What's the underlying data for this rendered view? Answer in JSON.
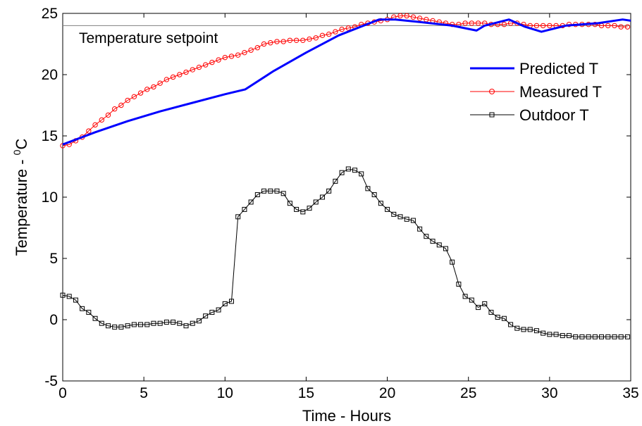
{
  "chart_data": {
    "type": "line",
    "xlabel": "Time - Hours",
    "ylabel_main": "Temperature - ",
    "ylabel_sup": "0",
    "ylabel_unit": "C",
    "xlim": [
      0,
      35
    ],
    "ylim": [
      -5,
      25
    ],
    "xticks": [
      0,
      5,
      10,
      15,
      20,
      25,
      30,
      35
    ],
    "yticks": [
      -5,
      0,
      5,
      10,
      15,
      20,
      25
    ],
    "grid": false,
    "legend_position": "top-right",
    "annotation": {
      "text": "Temperature setpoint",
      "y": 24
    },
    "setpoint": {
      "value": 24,
      "color": "#808080"
    },
    "series": [
      {
        "name": "Predicted T",
        "color": "#0000ff",
        "marker": "none",
        "x": [
          0,
          2,
          4,
          6,
          8,
          10,
          11.25,
          13,
          15,
          17,
          19.5,
          20.5,
          22,
          24,
          25.5,
          26,
          27.5,
          28.5,
          29.5,
          31,
          33,
          34.5,
          35
        ],
        "y": [
          14.3,
          15.3,
          16.2,
          17.0,
          17.7,
          18.4,
          18.8,
          20.3,
          21.8,
          23.2,
          24.5,
          24.5,
          24.3,
          24.0,
          23.6,
          24.0,
          24.5,
          23.9,
          23.5,
          24.0,
          24.2,
          24.5,
          24.4
        ]
      },
      {
        "name": "Measured T",
        "color": "#ff0000",
        "marker": "circle",
        "x": [
          0,
          0.4,
          0.8,
          1.2,
          1.6,
          2.0,
          2.4,
          2.8,
          3.2,
          3.6,
          4.0,
          4.4,
          4.8,
          5.2,
          5.6,
          6.0,
          6.4,
          6.8,
          7.2,
          7.6,
          8.0,
          8.4,
          8.8,
          9.2,
          9.6,
          10.0,
          10.4,
          10.8,
          11.2,
          11.6,
          12.0,
          12.4,
          12.8,
          13.2,
          13.6,
          14.0,
          14.4,
          14.8,
          15.2,
          15.6,
          16.0,
          16.4,
          16.8,
          17.2,
          17.6,
          18.0,
          18.4,
          18.8,
          19.2,
          19.6,
          20.0,
          20.4,
          20.8,
          21.2,
          21.6,
          22.0,
          22.4,
          22.8,
          23.2,
          23.6,
          24.0,
          24.4,
          24.8,
          25.2,
          25.6,
          26.0,
          26.4,
          26.8,
          27.2,
          27.6,
          28.0,
          28.4,
          28.8,
          29.2,
          29.6,
          30.0,
          30.4,
          30.8,
          31.2,
          31.6,
          32.0,
          32.4,
          32.8,
          33.2,
          33.6,
          34.0,
          34.4,
          34.8
        ],
        "y": [
          14.2,
          14.3,
          14.6,
          14.9,
          15.4,
          15.9,
          16.3,
          16.7,
          17.2,
          17.5,
          17.9,
          18.2,
          18.5,
          18.8,
          19.0,
          19.3,
          19.6,
          19.8,
          20.0,
          20.2,
          20.4,
          20.6,
          20.8,
          21.0,
          21.2,
          21.4,
          21.5,
          21.6,
          21.8,
          22.0,
          22.2,
          22.5,
          22.6,
          22.7,
          22.7,
          22.8,
          22.8,
          22.8,
          22.9,
          23.0,
          23.2,
          23.3,
          23.5,
          23.7,
          23.8,
          23.9,
          24.1,
          24.2,
          24.3,
          24.4,
          24.5,
          24.7,
          24.8,
          24.8,
          24.7,
          24.6,
          24.5,
          24.4,
          24.3,
          24.2,
          24.1,
          24.1,
          24.2,
          24.2,
          24.2,
          24.2,
          24.1,
          24.1,
          24.1,
          24.2,
          24.2,
          24.1,
          24.0,
          24.0,
          24.0,
          24.0,
          24.0,
          24.0,
          24.1,
          24.1,
          24.1,
          24.1,
          24.1,
          24.0,
          24.0,
          24.0,
          23.9,
          23.9
        ]
      },
      {
        "name": "Outdoor T",
        "color": "#000000",
        "marker": "square",
        "x": [
          0,
          0.4,
          0.8,
          1.2,
          1.6,
          2.0,
          2.4,
          2.8,
          3.2,
          3.6,
          4.0,
          4.4,
          4.8,
          5.2,
          5.6,
          6.0,
          6.4,
          6.8,
          7.2,
          7.6,
          8.0,
          8.4,
          8.8,
          9.2,
          9.6,
          10.0,
          10.4,
          10.8,
          11.2,
          11.6,
          12.0,
          12.4,
          12.8,
          13.2,
          13.6,
          14.0,
          14.4,
          14.8,
          15.2,
          15.6,
          16.0,
          16.4,
          16.8,
          17.2,
          17.6,
          18.0,
          18.4,
          18.8,
          19.2,
          19.6,
          20.0,
          20.4,
          20.8,
          21.2,
          21.6,
          22.0,
          22.4,
          22.8,
          23.2,
          23.6,
          24.0,
          24.4,
          24.8,
          25.2,
          25.6,
          26.0,
          26.4,
          26.8,
          27.2,
          27.6,
          28.0,
          28.4,
          28.8,
          29.2,
          29.6,
          30.0,
          30.4,
          30.8,
          31.2,
          31.6,
          32.0,
          32.4,
          32.8,
          33.2,
          33.6,
          34.0,
          34.4,
          34.8
        ],
        "y": [
          2.0,
          1.9,
          1.6,
          0.9,
          0.6,
          0.1,
          -0.3,
          -0.5,
          -0.6,
          -0.6,
          -0.5,
          -0.4,
          -0.4,
          -0.4,
          -0.3,
          -0.3,
          -0.2,
          -0.2,
          -0.3,
          -0.5,
          -0.3,
          -0.1,
          0.3,
          0.6,
          0.8,
          1.3,
          1.5,
          8.4,
          9.0,
          9.6,
          10.2,
          10.5,
          10.5,
          10.5,
          10.3,
          9.5,
          9.0,
          8.8,
          9.1,
          9.6,
          10.0,
          10.5,
          11.3,
          12.0,
          12.3,
          12.2,
          11.9,
          10.7,
          10.2,
          9.5,
          9.0,
          8.6,
          8.4,
          8.2,
          8.1,
          7.4,
          6.8,
          6.4,
          6.1,
          5.8,
          4.7,
          2.9,
          1.9,
          1.6,
          1.0,
          1.3,
          0.6,
          0.2,
          0.1,
          -0.4,
          -0.7,
          -0.8,
          -0.8,
          -0.9,
          -1.1,
          -1.2,
          -1.2,
          -1.3,
          -1.3,
          -1.4,
          -1.4,
          -1.4,
          -1.4,
          -1.4,
          -1.4,
          -1.4,
          -1.4,
          -1.4
        ]
      }
    ]
  }
}
